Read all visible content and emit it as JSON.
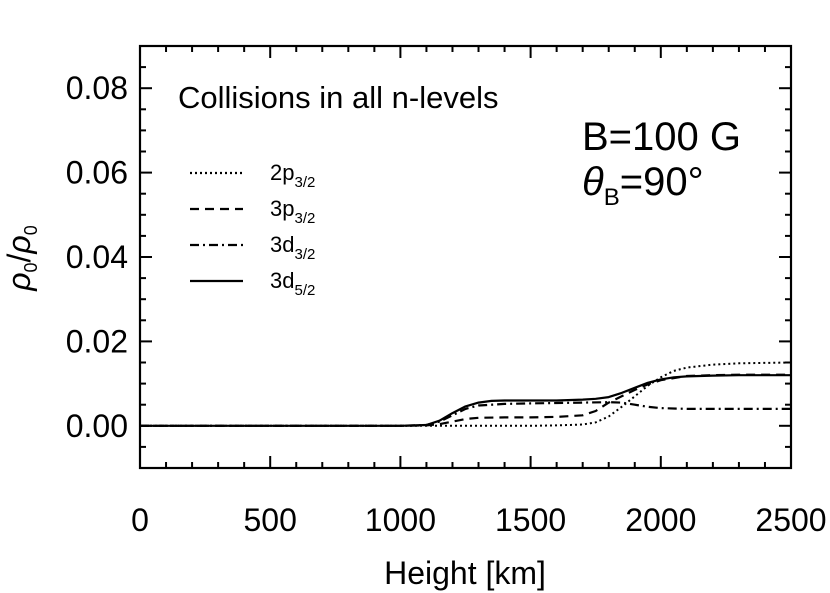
{
  "chart_data": {
    "type": "line",
    "title": "",
    "xlabel": "Height [km]",
    "ylabel": {
      "base": "ρ",
      "sub": "0",
      "slash": "/",
      "base2": "ρ",
      "sub2": "0"
    },
    "xlim": [
      0,
      2500
    ],
    "ylim": [
      -0.01,
      0.09
    ],
    "xticks": [
      0,
      500,
      1000,
      1500,
      2000,
      2500
    ],
    "xtick_labels": [
      "0",
      "500",
      "1000",
      "1500",
      "2000",
      "2500"
    ],
    "yticks": [
      0.0,
      0.02,
      0.04,
      0.06,
      0.08
    ],
    "ytick_labels": [
      "0.00",
      "0.02",
      "0.04",
      "0.06",
      "0.08"
    ],
    "annotation": "Collisions in all n-levels",
    "params": {
      "b_field": "B=100 G",
      "theta_symbol": "θ",
      "theta_sub": "B",
      "theta_value": "=90°"
    },
    "series": [
      {
        "name": "2p3/2",
        "label_main": "2p",
        "label_sub": "3/2",
        "style": "dotted",
        "x": [
          0,
          1000,
          1500,
          1600,
          1700,
          1750,
          1800,
          1850,
          1900,
          1950,
          2000,
          2050,
          2100,
          2200,
          2300,
          2400,
          2500
        ],
        "y": [
          0,
          0,
          0,
          0.0001,
          0.0003,
          0.0008,
          0.0022,
          0.0045,
          0.007,
          0.0095,
          0.0115,
          0.013,
          0.0138,
          0.0145,
          0.0148,
          0.0149,
          0.015
        ]
      },
      {
        "name": "3p3/2",
        "label_main": "3p",
        "label_sub": "3/2",
        "style": "dashed",
        "x": [
          0,
          1000,
          1100,
          1150,
          1200,
          1250,
          1300,
          1400,
          1500,
          1600,
          1700,
          1750,
          1800,
          1850,
          1900,
          1950,
          2000,
          2100,
          2200,
          2300,
          2400,
          2500
        ],
        "y": [
          0,
          0,
          0.0001,
          0.0004,
          0.001,
          0.0016,
          0.0019,
          0.002,
          0.002,
          0.0021,
          0.0025,
          0.0035,
          0.0055,
          0.007,
          0.0085,
          0.0098,
          0.0108,
          0.0118,
          0.012,
          0.0121,
          0.0121,
          0.0121
        ]
      },
      {
        "name": "3d3/2",
        "label_main": "3d",
        "label_sub": "3/2",
        "style": "dashdot",
        "x": [
          0,
          1000,
          1100,
          1150,
          1200,
          1250,
          1300,
          1400,
          1500,
          1600,
          1700,
          1800,
          1850,
          1900,
          1950,
          2000,
          2100,
          2200,
          2300,
          2400,
          2500
        ],
        "y": [
          0,
          0,
          0.0002,
          0.001,
          0.0025,
          0.004,
          0.0048,
          0.0052,
          0.0053,
          0.0054,
          0.0055,
          0.0056,
          0.0055,
          0.005,
          0.0045,
          0.0042,
          0.004,
          0.004,
          0.004,
          0.004,
          0.004
        ]
      },
      {
        "name": "3d5/2",
        "label_main": "3d",
        "label_sub": "5/2",
        "style": "solid",
        "x": [
          0,
          1000,
          1100,
          1150,
          1200,
          1250,
          1300,
          1350,
          1400,
          1500,
          1600,
          1700,
          1750,
          1800,
          1850,
          1900,
          1950,
          2000,
          2050,
          2100,
          2200,
          2300,
          2400,
          2500
        ],
        "y": [
          0,
          0,
          0.0002,
          0.0012,
          0.003,
          0.0046,
          0.0055,
          0.0059,
          0.006,
          0.006,
          0.006,
          0.0062,
          0.0064,
          0.0068,
          0.0078,
          0.009,
          0.0102,
          0.011,
          0.0115,
          0.0117,
          0.0119,
          0.012,
          0.012,
          0.012
        ]
      }
    ]
  }
}
